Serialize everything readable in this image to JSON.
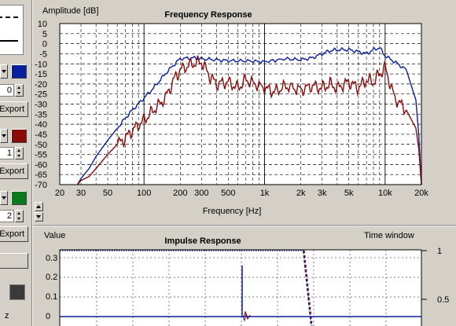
{
  "sidebar": {
    "groups": [
      {
        "color": "#0a1ea0",
        "spin_value": "0",
        "export_label": "Export"
      },
      {
        "color": "#8b0a0a",
        "spin_value": "1",
        "export_label": "Export"
      },
      {
        "color": "#0a7a1e",
        "spin_value": "2",
        "export_label": "Export"
      }
    ],
    "bottom_label": "z"
  },
  "chart_data": [
    {
      "type": "line",
      "title": "Frequency Response",
      "ylabel": "Amplitude [dB]",
      "xlabel": "Frequency [Hz]",
      "x_scale": "log",
      "xlim": [
        20,
        20000
      ],
      "ylim": [
        -70,
        10
      ],
      "x_ticks": [
        20,
        30,
        50,
        100,
        200,
        300,
        500,
        1000,
        2000,
        3000,
        5000,
        10000,
        20000
      ],
      "x_tick_labels": [
        "20",
        "30",
        "50",
        "100",
        "200",
        "300",
        "500",
        "1k",
        "2k",
        "3k",
        "5k",
        "10k",
        "20k"
      ],
      "y_ticks": [
        10,
        5,
        0,
        -5,
        -10,
        -15,
        -20,
        -25,
        -30,
        -35,
        -40,
        -45,
        -50,
        -55,
        -60,
        -65,
        -70
      ],
      "y_tick_labels": [
        "10",
        "5",
        "0",
        "-5",
        "-10",
        "-15",
        "-20",
        "-25",
        "-30",
        "-35",
        "-40",
        "-45",
        "-50",
        "-55",
        "-60",
        "-65",
        "-70"
      ],
      "grid": true,
      "series": [
        {
          "color": "#0a1ea0",
          "x": [
            28,
            30,
            35,
            40,
            50,
            60,
            70,
            80,
            100,
            120,
            150,
            180,
            200,
            250,
            300,
            400,
            500,
            700,
            1000,
            1500,
            2000,
            2500,
            3000,
            3500,
            4000,
            5000,
            6000,
            7000,
            8000,
            9000,
            10000,
            12000,
            15000,
            18000,
            19000,
            20000
          ],
          "y": [
            -70,
            -67,
            -62,
            -56,
            -48,
            -42,
            -37,
            -33,
            -27,
            -22,
            -15,
            -10,
            -7.5,
            -7,
            -7.5,
            -8,
            -8.5,
            -8.5,
            -9,
            -7.5,
            -8,
            -7,
            -5,
            -3.5,
            -3,
            -3,
            -4,
            -5,
            -3,
            -2,
            -6,
            -9,
            -13,
            -28,
            -45,
            -70
          ]
        },
        {
          "color": "#8b0a0a",
          "x": [
            28,
            30,
            35,
            40,
            50,
            60,
            70,
            80,
            100,
            120,
            150,
            180,
            200,
            250,
            300,
            350,
            400,
            500,
            600,
            700,
            1000,
            1200,
            1500,
            2000,
            2500,
            3000,
            3500,
            4000,
            5000,
            6000,
            7000,
            8000,
            9000,
            10000,
            12000,
            15000,
            18000,
            19000,
            20000
          ],
          "y": [
            -70,
            -68,
            -66,
            -62,
            -55,
            -50,
            -47,
            -43,
            -38,
            -33,
            -27,
            -17,
            -13,
            -10,
            -9,
            -16,
            -20,
            -19,
            -22,
            -18,
            -22,
            -24,
            -21,
            -23,
            -21,
            -22,
            -20,
            -22,
            -19,
            -22,
            -18,
            -19,
            -15,
            -12,
            -27,
            -33,
            -42,
            -52,
            -70
          ]
        }
      ]
    },
    {
      "type": "line",
      "title": "Impulse Response",
      "ylabel": "Value",
      "y2label": "Time window",
      "ylim": [
        0,
        0.35
      ],
      "y_tick_labels": [
        "0.3",
        "0.2",
        "0.1",
        "0"
      ],
      "y2_tick_labels": [
        "1",
        "0.5"
      ]
    }
  ]
}
